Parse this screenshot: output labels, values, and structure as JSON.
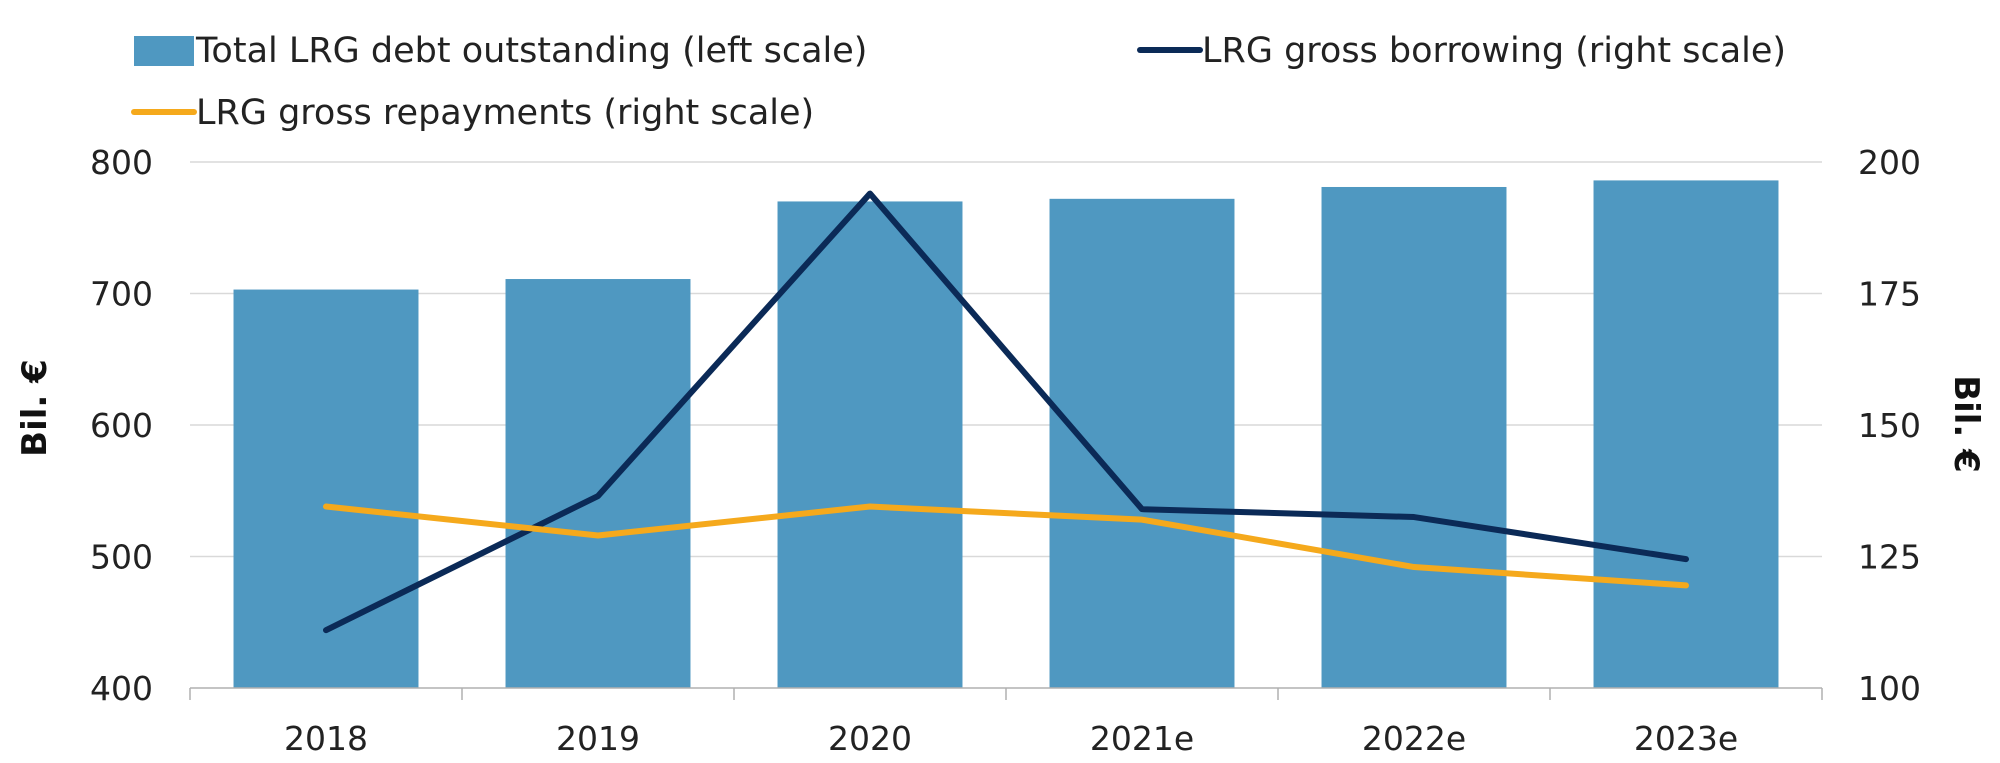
{
  "chart_data": {
    "type": "bar",
    "categories": [
      "2018",
      "2019",
      "2020",
      "2021e",
      "2022e",
      "2023e"
    ],
    "series": [
      {
        "name": "Total LRG debt outstanding (left scale)",
        "type": "bar",
        "axis": "left",
        "color": "#4f98c1",
        "values": [
          703,
          711,
          770,
          772,
          781,
          786
        ]
      },
      {
        "name": "LRG gross borrowing (right scale)",
        "type": "line",
        "axis": "right",
        "color": "#0b2a57",
        "values": [
          111,
          136.5,
          194,
          134,
          132.5,
          124.5
        ]
      },
      {
        "name": "LRG gross repayments (right scale)",
        "type": "line",
        "axis": "right",
        "color": "#f5a91c",
        "values": [
          134.5,
          129,
          134.5,
          132,
          123,
          119.5
        ]
      }
    ],
    "y_left": {
      "label": "Bil. €",
      "range": [
        400,
        800
      ],
      "ticks": [
        "400",
        "500",
        "600",
        "700",
        "800"
      ]
    },
    "y_right": {
      "label": "Bil. €",
      "range": [
        100,
        200
      ],
      "ticks": [
        "100",
        "125",
        "150",
        "175",
        "200"
      ]
    },
    "grid": true,
    "legend_position": "top-left"
  }
}
